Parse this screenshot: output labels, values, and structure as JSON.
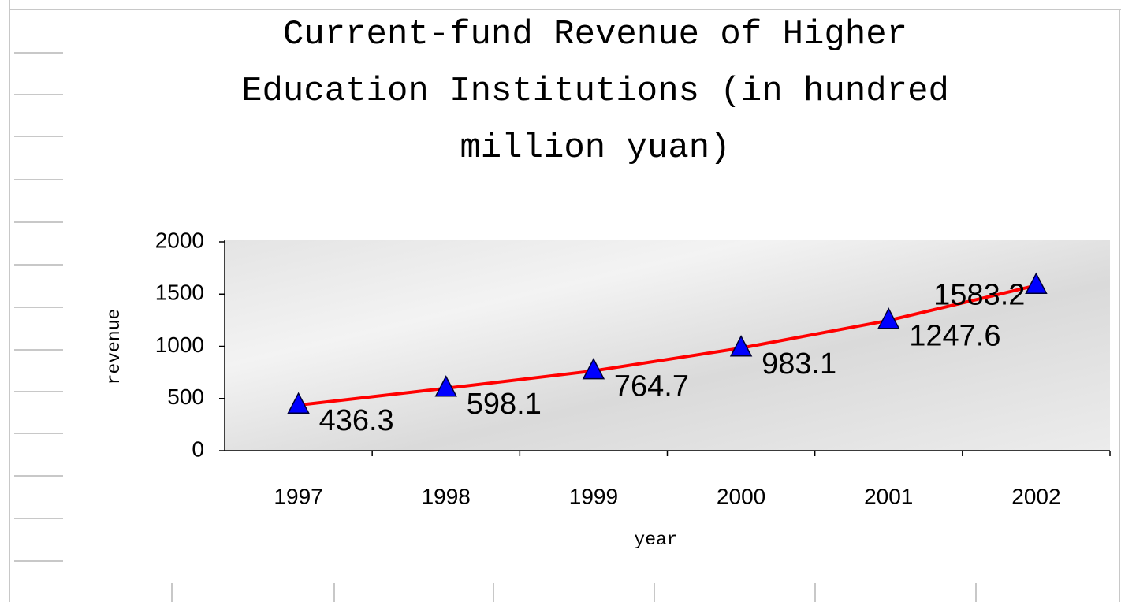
{
  "chart_data": {
    "type": "line",
    "title": "Current-fund Revenue of Higher Education Institutions (in hundred million yuan)",
    "x_label": "year",
    "y_label": "revenue",
    "categories": [
      "1997",
      "1998",
      "1999",
      "2000",
      "2001",
      "2002"
    ],
    "series": [
      {
        "name": "revenue",
        "color": "#ff0000",
        "marker_color": "#0000ff",
        "values": [
          436.3,
          598.1,
          764.7,
          983.1,
          1247.6,
          1583.2
        ]
      }
    ],
    "ylim": [
      0,
      2000
    ],
    "yticks": [
      0,
      500,
      1000,
      1500,
      2000
    ]
  }
}
